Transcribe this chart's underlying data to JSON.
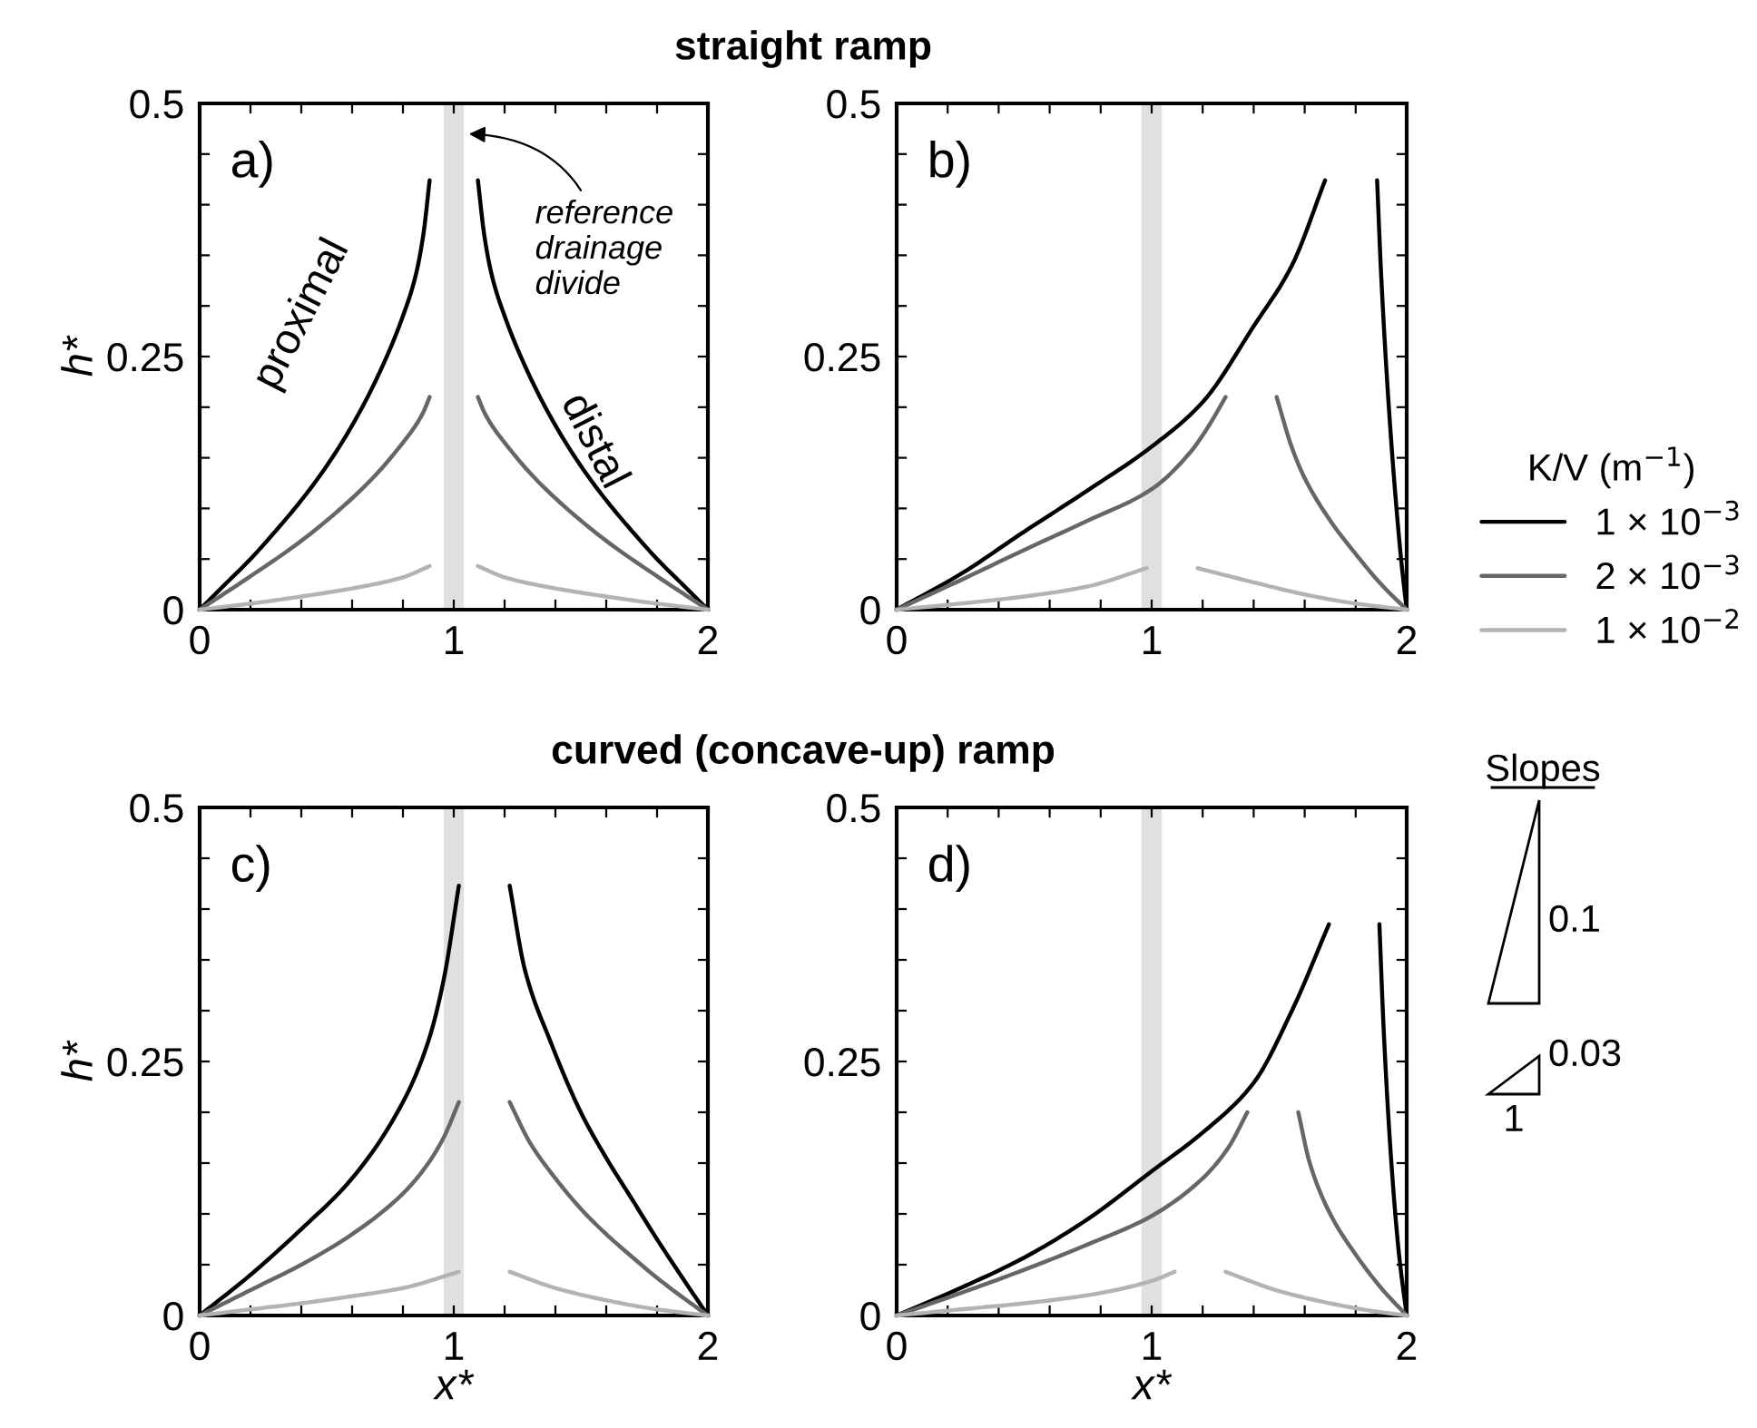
{
  "chart_data": [
    {
      "type": "line",
      "title": "straight ramp",
      "ylabel": "h*",
      "xlim": [
        0,
        2
      ],
      "ylim": [
        0,
        0.5
      ],
      "xticks": [
        0,
        {
          "value": 0.2,
          "label": null
        },
        {
          "value": 0.4,
          "label": null
        },
        {
          "value": 0.6,
          "label": null
        },
        {
          "value": 0.8,
          "label": null
        },
        1,
        {
          "value": 1.2,
          "label": null
        },
        {
          "value": 1.4,
          "label": null
        },
        {
          "value": 1.6,
          "label": null
        },
        {
          "value": 1.8,
          "label": null
        },
        2
      ],
      "yticks": [
        0,
        {
          "value": 0.05,
          "label": null
        },
        {
          "value": 0.1,
          "label": null
        },
        {
          "value": 0.15,
          "label": null
        },
        {
          "value": 0.2,
          "label": null
        },
        0.25,
        {
          "value": 0.3,
          "label": null
        },
        {
          "value": 0.35,
          "label": null
        },
        {
          "value": 0.4,
          "label": null
        },
        {
          "value": 0.45,
          "label": null
        },
        0.5
      ],
      "grid": false,
      "legend": false,
      "bands": [
        {
          "axis": "x",
          "from": 0.96,
          "to": 1.04,
          "color": "#e0e0e0"
        }
      ],
      "annotations": [
        "a)",
        "proximal",
        "distal",
        {
          "text": "reference\ndrainage\ndivide",
          "x": 1.04,
          "y": 0.47
        }
      ],
      "series": [
        {
          "color": "#000000",
          "x": [
            0,
            0.1,
            0.2,
            0.3,
            0.4,
            0.5,
            0.6,
            0.7,
            0.8,
            0.85,
            0.88,
            0.905
          ],
          "values": [
            0,
            0.025,
            0.05,
            0.078,
            0.108,
            0.142,
            0.182,
            0.23,
            0.29,
            0.33,
            0.37,
            0.424
          ]
        },
        {
          "color": "#666666",
          "x": [
            0,
            0.2,
            0.4,
            0.6,
            0.7,
            0.8,
            0.85,
            0.88,
            0.905
          ],
          "values": [
            0,
            0.033,
            0.068,
            0.11,
            0.135,
            0.165,
            0.182,
            0.195,
            0.21
          ]
        },
        {
          "color": "#b3b3b3",
          "x": [
            0,
            0.2,
            0.4,
            0.6,
            0.8,
            0.905
          ],
          "values": [
            0,
            0.006,
            0.013,
            0.021,
            0.032,
            0.043
          ]
        },
        {
          "color": "#000000",
          "x": [
            1.095,
            1.12,
            1.15,
            1.2,
            1.3,
            1.4,
            1.5,
            1.6,
            1.7,
            1.8,
            1.9,
            2
          ],
          "values": [
            0.424,
            0.37,
            0.33,
            0.29,
            0.23,
            0.182,
            0.142,
            0.108,
            0.078,
            0.05,
            0.025,
            0
          ]
        },
        {
          "color": "#666666",
          "x": [
            1.095,
            1.12,
            1.15,
            1.2,
            1.3,
            1.4,
            1.6,
            1.8,
            2
          ],
          "values": [
            0.21,
            0.195,
            0.182,
            0.165,
            0.135,
            0.11,
            0.068,
            0.033,
            0
          ]
        },
        {
          "color": "#b3b3b3",
          "x": [
            1.095,
            1.2,
            1.4,
            1.6,
            1.8,
            2
          ],
          "values": [
            0.043,
            0.032,
            0.021,
            0.013,
            0.006,
            0
          ]
        }
      ]
    },
    {
      "type": "line",
      "xlim": [
        0,
        2
      ],
      "ylim": [
        0,
        0.5
      ],
      "xticks": [
        0,
        {
          "value": 0.2,
          "label": null
        },
        {
          "value": 0.4,
          "label": null
        },
        {
          "value": 0.6,
          "label": null
        },
        {
          "value": 0.8,
          "label": null
        },
        1,
        {
          "value": 1.2,
          "label": null
        },
        {
          "value": 1.4,
          "label": null
        },
        {
          "value": 1.6,
          "label": null
        },
        {
          "value": 1.8,
          "label": null
        },
        2
      ],
      "yticks": [
        0,
        {
          "value": 0.05,
          "label": null
        },
        {
          "value": 0.1,
          "label": null
        },
        {
          "value": 0.15,
          "label": null
        },
        {
          "value": 0.2,
          "label": null
        },
        0.25,
        {
          "value": 0.3,
          "label": null
        },
        {
          "value": 0.35,
          "label": null
        },
        {
          "value": 0.4,
          "label": null
        },
        {
          "value": 0.45,
          "label": null
        },
        0.5
      ],
      "grid": false,
      "legend": "right",
      "legend_title": "K/V (m$^{−1}$)",
      "bands": [
        {
          "axis": "x",
          "from": 0.96,
          "to": 1.04,
          "color": "#e0e0e0"
        }
      ],
      "annotations": [
        "b)"
      ],
      "series": [
        {
          "name": "1 × 10$^{−3}$",
          "color": "#000000",
          "x": [
            0,
            0.25,
            0.5,
            0.75,
            1,
            1.2,
            1.4,
            1.55,
            1.68
          ],
          "values": [
            0,
            0.035,
            0.077,
            0.118,
            0.161,
            0.205,
            0.28,
            0.34,
            0.424
          ]
        },
        {
          "name": "2 × 10$^{−3}$",
          "color": "#666666",
          "x": [
            0,
            0.25,
            0.5,
            0.75,
            1,
            1.15,
            1.22,
            1.29
          ],
          "values": [
            0,
            0.029,
            0.059,
            0.088,
            0.119,
            0.155,
            0.18,
            0.21
          ]
        },
        {
          "name": "1 × 10$^{−2}$",
          "color": "#b3b3b3",
          "x": [
            0,
            0.25,
            0.5,
            0.75,
            0.98
          ],
          "values": [
            0,
            0.006,
            0.013,
            0.023,
            0.041
          ]
        },
        {
          "color": "#000000",
          "x": [
            1.884,
            1.9,
            1.93,
            1.96,
            1.98,
            2
          ],
          "values": [
            0.424,
            0.33,
            0.2,
            0.1,
            0.045,
            0
          ]
        },
        {
          "color": "#666666",
          "x": [
            1.49,
            1.55,
            1.6,
            1.7,
            1.8,
            1.9,
            2
          ],
          "values": [
            0.21,
            0.16,
            0.13,
            0.088,
            0.055,
            0.025,
            0
          ]
        },
        {
          "color": "#b3b3b3",
          "x": [
            1.18,
            1.4,
            1.6,
            1.8,
            2
          ],
          "values": [
            0.041,
            0.027,
            0.015,
            0.006,
            0
          ]
        }
      ]
    },
    {
      "type": "line",
      "title": "curved (concave-up) ramp",
      "xlabel": "x*",
      "ylabel": "h*",
      "xlim": [
        0,
        2
      ],
      "ylim": [
        0,
        0.5
      ],
      "xticks": [
        0,
        {
          "value": 0.2,
          "label": null
        },
        {
          "value": 0.4,
          "label": null
        },
        {
          "value": 0.6,
          "label": null
        },
        {
          "value": 0.8,
          "label": null
        },
        1,
        {
          "value": 1.2,
          "label": null
        },
        {
          "value": 1.4,
          "label": null
        },
        {
          "value": 1.6,
          "label": null
        },
        {
          "value": 1.8,
          "label": null
        },
        2
      ],
      "yticks": [
        0,
        {
          "value": 0.05,
          "label": null
        },
        {
          "value": 0.1,
          "label": null
        },
        {
          "value": 0.15,
          "label": null
        },
        {
          "value": 0.2,
          "label": null
        },
        0.25,
        {
          "value": 0.3,
          "label": null
        },
        {
          "value": 0.35,
          "label": null
        },
        {
          "value": 0.4,
          "label": null
        },
        {
          "value": 0.45,
          "label": null
        },
        0.5
      ],
      "grid": false,
      "legend": false,
      "bands": [
        {
          "axis": "x",
          "from": 0.96,
          "to": 1.04,
          "color": "#e0e0e0"
        }
      ],
      "annotations": [
        "c)"
      ],
      "series": [
        {
          "color": "#000000",
          "x": [
            0,
            0.2,
            0.4,
            0.6,
            0.8,
            0.9,
            0.96,
            1.02
          ],
          "values": [
            0,
            0.04,
            0.085,
            0.135,
            0.21,
            0.27,
            0.33,
            0.423
          ]
        },
        {
          "color": "#666666",
          "x": [
            0,
            0.2,
            0.4,
            0.6,
            0.8,
            0.9,
            0.96,
            1.02
          ],
          "values": [
            0,
            0.025,
            0.05,
            0.08,
            0.12,
            0.15,
            0.175,
            0.21
          ]
        },
        {
          "color": "#b3b3b3",
          "x": [
            0,
            0.2,
            0.4,
            0.6,
            0.8,
            1.02
          ],
          "values": [
            0,
            0.006,
            0.012,
            0.019,
            0.027,
            0.043
          ]
        },
        {
          "color": "#000000",
          "x": [
            1.22,
            1.28,
            1.38,
            1.5,
            1.6,
            1.7,
            1.8,
            1.9,
            2
          ],
          "values": [
            0.423,
            0.34,
            0.27,
            0.2,
            0.155,
            0.115,
            0.075,
            0.037,
            0
          ]
        },
        {
          "color": "#666666",
          "x": [
            1.22,
            1.3,
            1.4,
            1.5,
            1.6,
            1.7,
            1.8,
            1.9,
            2
          ],
          "values": [
            0.21,
            0.17,
            0.135,
            0.105,
            0.08,
            0.058,
            0.037,
            0.018,
            0
          ]
        },
        {
          "color": "#b3b3b3",
          "x": [
            1.22,
            1.4,
            1.6,
            1.8,
            2
          ],
          "values": [
            0.043,
            0.027,
            0.015,
            0.006,
            0
          ]
        }
      ]
    },
    {
      "type": "line",
      "xlabel": "x*",
      "xlim": [
        0,
        2
      ],
      "ylim": [
        0,
        0.5
      ],
      "xticks": [
        0,
        {
          "value": 0.2,
          "label": null
        },
        {
          "value": 0.4,
          "label": null
        },
        {
          "value": 0.6,
          "label": null
        },
        {
          "value": 0.8,
          "label": null
        },
        1,
        {
          "value": 1.2,
          "label": null
        },
        {
          "value": 1.4,
          "label": null
        },
        {
          "value": 1.6,
          "label": null
        },
        {
          "value": 1.8,
          "label": null
        },
        2
      ],
      "yticks": [
        0,
        {
          "value": 0.05,
          "label": null
        },
        {
          "value": 0.1,
          "label": null
        },
        {
          "value": 0.15,
          "label": null
        },
        {
          "value": 0.2,
          "label": null
        },
        0.25,
        {
          "value": 0.3,
          "label": null
        },
        {
          "value": 0.35,
          "label": null
        },
        {
          "value": 0.4,
          "label": null
        },
        {
          "value": 0.45,
          "label": null
        },
        0.5
      ],
      "grid": false,
      "legend": false,
      "bands": [
        {
          "axis": "x",
          "from": 0.96,
          "to": 1.04,
          "color": "#e0e0e0"
        }
      ],
      "annotations": [
        "d)",
        "Slopes",
        "0.1",
        "0.03",
        "1"
      ],
      "series": [
        {
          "color": "#000000",
          "x": [
            0,
            0.25,
            0.5,
            0.75,
            1,
            1.2,
            1.4,
            1.55,
            1.695
          ],
          "values": [
            0,
            0.027,
            0.057,
            0.095,
            0.142,
            0.18,
            0.229,
            0.3,
            0.385
          ]
        },
        {
          "color": "#666666",
          "x": [
            0,
            0.25,
            0.5,
            0.75,
            1,
            1.2,
            1.3,
            1.375
          ],
          "values": [
            0,
            0.022,
            0.045,
            0.07,
            0.098,
            0.135,
            0.165,
            0.2
          ]
        },
        {
          "color": "#b3b3b3",
          "x": [
            0,
            0.25,
            0.5,
            0.75,
            1,
            1.09
          ],
          "values": [
            0,
            0.006,
            0.012,
            0.02,
            0.034,
            0.043
          ]
        },
        {
          "color": "#000000",
          "x": [
            1.893,
            1.91,
            1.94,
            1.97,
            2
          ],
          "values": [
            0.385,
            0.28,
            0.15,
            0.06,
            0
          ]
        },
        {
          "color": "#666666",
          "x": [
            1.575,
            1.62,
            1.7,
            1.8,
            1.9,
            2
          ],
          "values": [
            0.2,
            0.15,
            0.1,
            0.06,
            0.027,
            0
          ]
        },
        {
          "color": "#b3b3b3",
          "x": [
            1.29,
            1.5,
            1.7,
            1.85,
            2
          ],
          "values": [
            0.043,
            0.024,
            0.012,
            0.005,
            0
          ]
        }
      ]
    }
  ]
}
